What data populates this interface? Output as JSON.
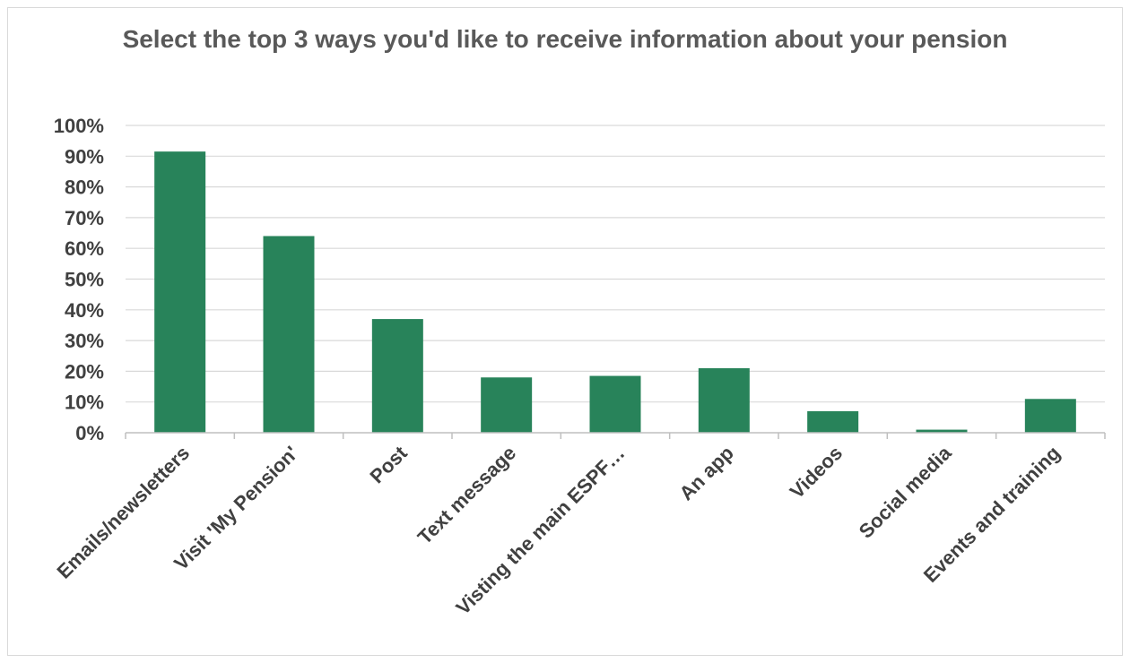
{
  "chart_data": {
    "type": "bar",
    "title": "Select the top 3 ways you'd like to receive information about your pension",
    "xlabel": "",
    "ylabel": "",
    "categories": [
      "Emails/newsletters",
      "Visit 'My Pension'",
      "Post",
      "Text message",
      "Visting the main ESPF…",
      "An app",
      "Videos",
      "Social media",
      "Events and training"
    ],
    "values": [
      0.915,
      0.64,
      0.37,
      0.18,
      0.185,
      0.21,
      0.07,
      0.01,
      0.11
    ],
    "ylim": [
      0,
      1
    ],
    "yticks": [
      0,
      0.1,
      0.2,
      0.3,
      0.4,
      0.5,
      0.6,
      0.7,
      0.8,
      0.9,
      1.0
    ],
    "ytick_labels": [
      "0%",
      "10%",
      "20%",
      "30%",
      "40%",
      "50%",
      "60%",
      "70%",
      "80%",
      "90%",
      "100%"
    ],
    "grid": true,
    "legend": "none",
    "colors": {
      "bar": "#28835a",
      "grid": "#d9d9d9",
      "axis": "#bfbfbf",
      "text": "#404040",
      "title": "#595959"
    }
  }
}
